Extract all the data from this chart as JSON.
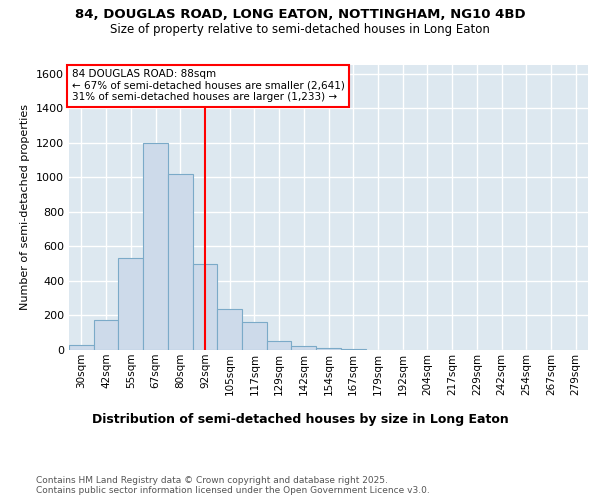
{
  "title_line1": "84, DOUGLAS ROAD, LONG EATON, NOTTINGHAM, NG10 4BD",
  "title_line2": "Size of property relative to semi-detached houses in Long Eaton",
  "xlabel": "Distribution of semi-detached houses by size in Long Eaton",
  "ylabel": "Number of semi-detached properties",
  "categories": [
    "30sqm",
    "42sqm",
    "55sqm",
    "67sqm",
    "80sqm",
    "92sqm",
    "105sqm",
    "117sqm",
    "129sqm",
    "142sqm",
    "154sqm",
    "167sqm",
    "179sqm",
    "192sqm",
    "204sqm",
    "217sqm",
    "229sqm",
    "242sqm",
    "254sqm",
    "267sqm",
    "279sqm"
  ],
  "bar_heights": [
    30,
    175,
    530,
    1200,
    1020,
    500,
    240,
    160,
    50,
    25,
    10,
    5,
    2,
    0,
    0,
    0,
    0,
    0,
    0,
    0,
    0
  ],
  "bar_color": "#cddaea",
  "bar_edge_color": "#7baac8",
  "bg_color": "#dde8f0",
  "grid_color": "#ffffff",
  "vline_x": 5.0,
  "vline_color": "red",
  "annotation_title": "84 DOUGLAS ROAD: 88sqm",
  "annotation_line2": "← 67% of semi-detached houses are smaller (2,641)",
  "annotation_line3": "31% of semi-detached houses are larger (1,233) →",
  "ylim": [
    0,
    1650
  ],
  "yticks": [
    0,
    200,
    400,
    600,
    800,
    1000,
    1200,
    1400,
    1600
  ],
  "footnote": "Contains HM Land Registry data © Crown copyright and database right 2025.\nContains public sector information licensed under the Open Government Licence v3.0."
}
